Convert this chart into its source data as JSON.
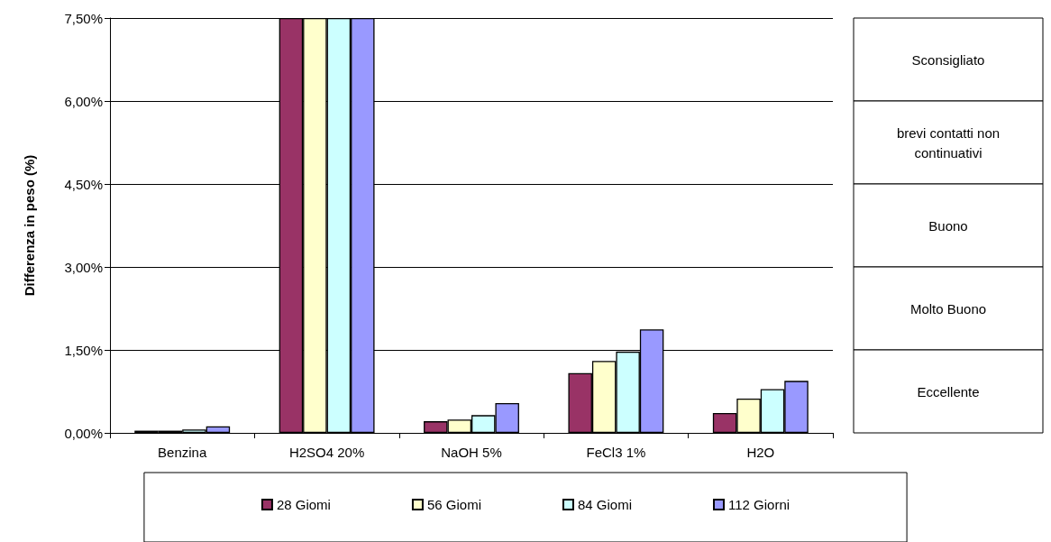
{
  "chart_data": {
    "type": "bar",
    "ylabel": "Differenza in peso (%)",
    "categories": [
      "Benzina",
      "H2SO4 20%",
      "NaOH 5%",
      "FeCl3 1%",
      "H2O"
    ],
    "series": [
      {
        "name": "28 Giomi",
        "color": "#993366",
        "values": [
          0.04,
          7.5,
          0.21,
          1.08,
          0.36
        ]
      },
      {
        "name": "56 Giomi",
        "color": "#ffffcc",
        "values": [
          0.04,
          7.5,
          0.24,
          1.3,
          0.62
        ]
      },
      {
        "name": "84 Giomi",
        "color": "#ccffff",
        "values": [
          0.06,
          7.5,
          0.32,
          1.47,
          0.79
        ]
      },
      {
        "name": "112 Giorni",
        "color": "#9999ff",
        "values": [
          0.12,
          7.5,
          0.54,
          1.87,
          0.94
        ]
      }
    ],
    "ylim": [
      0,
      7.5
    ],
    "yticks": [
      {
        "value": 0,
        "label": "0,00%"
      },
      {
        "value": 1.5,
        "label": "1,50%"
      },
      {
        "value": 3,
        "label": "3,00%"
      },
      {
        "value": 4.5,
        "label": "4,50%"
      },
      {
        "value": 6,
        "label": "6,00%"
      },
      {
        "value": 7.5,
        "label": "7,50%"
      }
    ],
    "grid": "y",
    "legend": "bottom",
    "annotations": [
      "Sconsigliato",
      "brevi contatti non\ncontinuativi",
      "Buono",
      "Molto Buono",
      "Eccellente"
    ]
  }
}
